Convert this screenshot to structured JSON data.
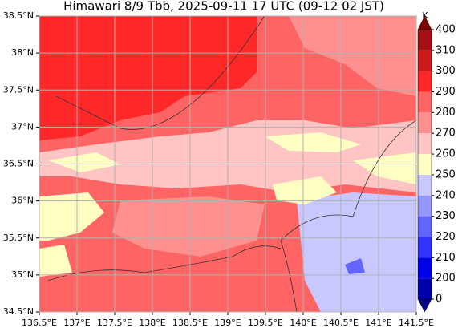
{
  "title": "Himawari 8/9 Tbb, 2025-09-11 17 UTC (09-12 02 JST)",
  "xlim": [
    136.5,
    141.5
  ],
  "ylim": [
    34.5,
    38.5
  ],
  "xticks": [
    {
      "value": 136.5,
      "label": "136.5°E"
    },
    {
      "value": 137,
      "label": "137°E"
    },
    {
      "value": 137.5,
      "label": "137.5°E"
    },
    {
      "value": 138,
      "label": "138°E"
    },
    {
      "value": 138.5,
      "label": "138.5°E"
    },
    {
      "value": 139,
      "label": "139°E"
    },
    {
      "value": 139.5,
      "label": "139.5°E"
    },
    {
      "value": 140,
      "label": "140°E"
    },
    {
      "value": 140.5,
      "label": "140.5°E"
    },
    {
      "value": 141,
      "label": "141°E"
    },
    {
      "value": 141.5,
      "label": "141.5°E"
    }
  ],
  "yticks": [
    {
      "value": 34.5,
      "label": "34.5°N"
    },
    {
      "value": 35,
      "label": "35°N"
    },
    {
      "value": 35.5,
      "label": "35.5°N"
    },
    {
      "value": 36,
      "label": "36°N"
    },
    {
      "value": 36.5,
      "label": "36.5°N"
    },
    {
      "value": 37,
      "label": "37°N"
    },
    {
      "value": 37.5,
      "label": "37.5°N"
    },
    {
      "value": 38,
      "label": "38°N"
    },
    {
      "value": 38.5,
      "label": "38.5°N"
    }
  ],
  "grid": true,
  "colorbar": {
    "unit": "K",
    "levels": [
      400,
      310,
      300,
      290,
      280,
      270,
      260,
      250,
      240,
      230,
      220,
      210,
      200,
      0
    ],
    "colors": [
      "#a50f15",
      "#cc1a1a",
      "#ff2828",
      "#ff6464",
      "#ff9090",
      "#ffc4c4",
      "#ffffc4",
      "#c8c8ff",
      "#9696ff",
      "#6464ff",
      "#3232ff",
      "#0000e6",
      "#0000aa"
    ],
    "over_color": "#800000",
    "under_color": "#00008b"
  }
}
